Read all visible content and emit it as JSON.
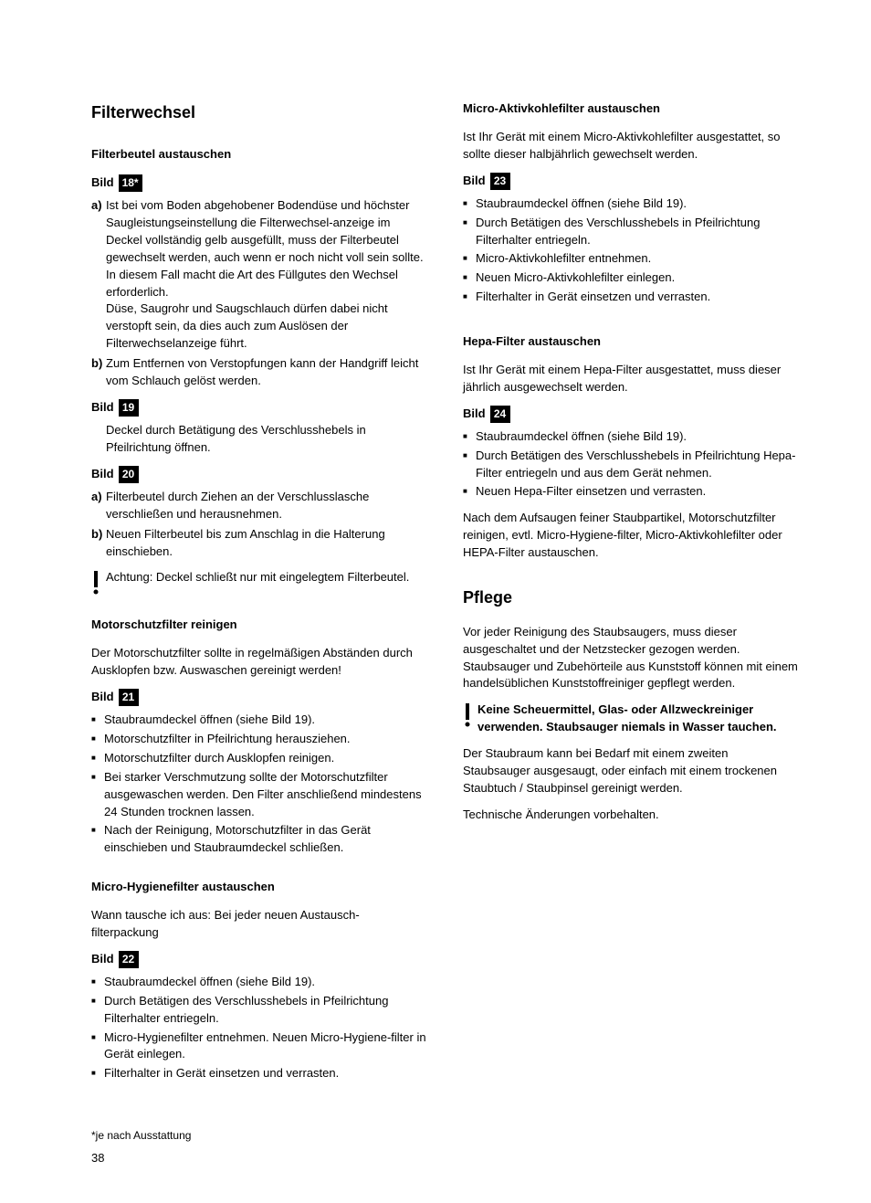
{
  "left": {
    "heading": "Filterwechsel",
    "s1": {
      "title": "Filterbeutel austauschen",
      "bildLabel": "Bild",
      "bild18": "18*",
      "a18": "Ist bei vom Boden abgehobener Bodendüse und höchster Saugleistungseinstellung die Filterwechsel-anzeige im Deckel vollständig gelb ausgefüllt, muss der Filterbeutel gewechselt werden, auch wenn er noch nicht voll sein sollte. In diesem Fall macht die Art des Füllgutes den Wechsel erforderlich.\nDüse, Saugrohr und Saugschlauch dürfen dabei nicht verstopft sein, da dies auch zum Auslösen der Filterwechselanzeige führt.",
      "b18": "Zum Entfernen von Verstopfungen kann der Handgriff leicht vom Schlauch gelöst werden.",
      "bild19": "19",
      "p19": "Deckel durch Betätigung des Verschlusshebels in Pfeilrichtung öffnen.",
      "bild20": "20",
      "a20": "Filterbeutel durch Ziehen an der Verschlusslasche verschließen und herausnehmen.",
      "b20": "Neuen Filterbeutel bis zum Anschlag in die Halterung einschieben.",
      "warn20": "Achtung: Deckel schließt nur mit eingelegtem Filterbeutel."
    },
    "s2": {
      "title": "Motorschutzfilter reinigen",
      "p1": "Der Motorschutzfilter sollte in regelmäßigen Abständen durch Ausklopfen bzw. Auswaschen gereinigt werden!",
      "bildLabel": "Bild",
      "bild21": "21",
      "items": [
        "Staubraumdeckel öffnen (siehe Bild 19).",
        "Motorschutzfilter in Pfeilrichtung herausziehen.",
        "Motorschutzfilter durch Ausklopfen reinigen.",
        "Bei starker Verschmutzung sollte der Motorschutzfilter ausgewaschen werden. Den Filter anschließend mindestens 24 Stunden trocknen lassen.",
        "Nach der Reinigung, Motorschutzfilter in das Gerät einschieben und Staubraumdeckel schließen."
      ]
    },
    "s3": {
      "title": "Micro-Hygienefilter austauschen",
      "p1": "Wann tausche ich aus: Bei jeder neuen Austausch-filterpackung",
      "bildLabel": "Bild",
      "bild22": "22",
      "items": [
        "Staubraumdeckel öffnen (siehe Bild 19).",
        "Durch Betätigen des Verschlusshebels in Pfeilrichtung Filterhalter entriegeln.",
        "Micro-Hygienefilter entnehmen. Neuen Micro-Hygiene-filter in Gerät einlegen.",
        "Filterhalter in Gerät einsetzen und verrasten."
      ]
    }
  },
  "right": {
    "s1": {
      "title": "Micro-Aktivkohlefilter austauschen",
      "p1": "Ist Ihr Gerät mit einem Micro-Aktivkohlefilter ausgestattet, so sollte dieser halbjährlich gewechselt werden.",
      "bildLabel": "Bild",
      "bild23": "23",
      "items": [
        "Staubraumdeckel öffnen (siehe Bild 19).",
        "Durch Betätigen des Verschlusshebels in Pfeilrichtung Filterhalter entriegeln.",
        "Micro-Aktivkohlefilter entnehmen.",
        "Neuen Micro-Aktivkohlefilter einlegen.",
        "Filterhalter in Gerät einsetzen und verrasten."
      ]
    },
    "s2": {
      "title": "Hepa-Filter austauschen",
      "p1": "Ist Ihr Gerät mit einem Hepa-Filter ausgestattet, muss dieser jährlich ausgewechselt werden.",
      "bildLabel": "Bild",
      "bild24": "24",
      "items": [
        "Staubraumdeckel öffnen (siehe Bild 19).",
        "Durch Betätigen des Verschlusshebels in Pfeilrichtung Hepa-Filter entriegeln und aus dem Gerät nehmen.",
        "Neuen Hepa-Filter einsetzen und verrasten."
      ],
      "p2": "Nach dem Aufsaugen feiner Staubpartikel, Motorschutzfilter reinigen, evtl. Micro-Hygiene-filter,  Micro-Aktivkohlefilter oder HEPA-Filter austauschen."
    },
    "s3": {
      "heading": "Pflege",
      "p1": "Vor jeder Reinigung des Staubsaugers, muss dieser ausgeschaltet und der Netzstecker gezogen werden. Staubsauger und Zubehörteile aus Kunststoff können mit einem handelsüblichen Kunststoffreiniger gepflegt werden.",
      "warn": "Keine Scheuermittel, Glas- oder Allzweckreiniger verwenden.  Staubsauger niemals in Wasser tauchen.",
      "p2": "Der Staubraum kann bei Bedarf mit einem zweiten Staubsauger ausgesaugt, oder einfach mit einem trockenen Staubtuch / Staubpinsel gereinigt werden.",
      "p3": "Technische Änderungen vorbehalten."
    }
  },
  "labels": {
    "a": "a)",
    "b": "b)"
  },
  "footnote": "*je nach Ausstattung",
  "pageNum": "38"
}
